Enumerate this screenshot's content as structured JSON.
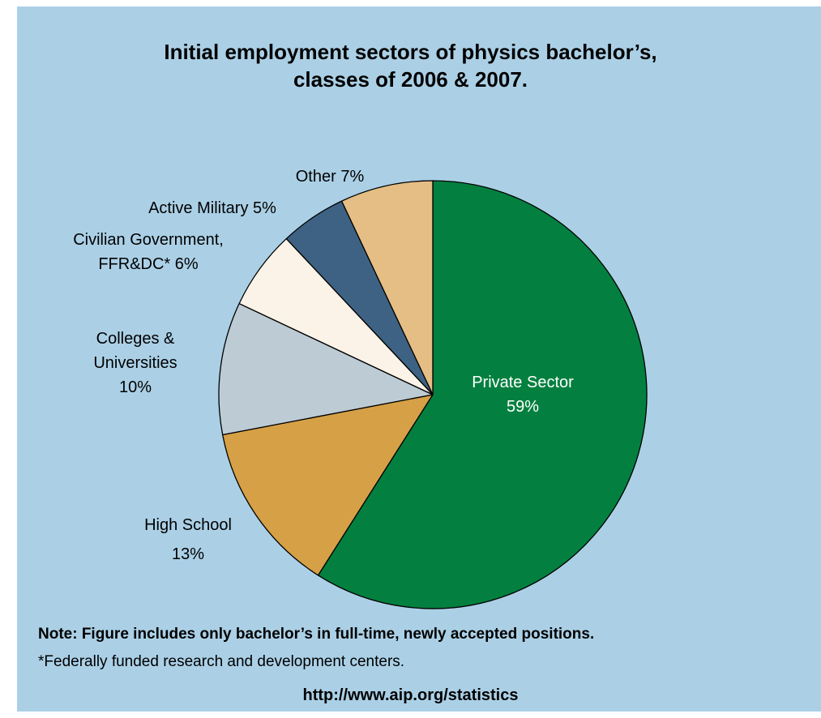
{
  "chart_data": {
    "type": "pie",
    "title": "Initial employment sectors of physics bachelor’s, classes of 2006 & 2007.",
    "title_lines": [
      "Initial employment sectors of physics bachelor’s,",
      "classes of 2006 & 2007."
    ],
    "start_angle_deg": 0,
    "direction": "clockwise",
    "slices": [
      {
        "name": "Private Sector",
        "value": 59,
        "label_lines": [
          "Private Sector",
          "59%"
        ],
        "color": "#03803f",
        "label_color": "#ffffff"
      },
      {
        "name": "High School",
        "value": 13,
        "label_lines": [
          "High School",
          "13%"
        ],
        "color": "#d6a047",
        "label_color": "#000000"
      },
      {
        "name": "Colleges & Universities",
        "value": 10,
        "label_lines": [
          "Colleges &",
          "Universities",
          "10%"
        ],
        "color": "#bdcbd4",
        "label_color": "#000000"
      },
      {
        "name": "Civilian Government, FFR&DC*",
        "value": 6,
        "label_lines": [
          "Civilian Government,",
          "FFR&DC*    6%"
        ],
        "color": "#fbf3e7",
        "label_color": "#000000"
      },
      {
        "name": "Active Military",
        "value": 5,
        "label_lines": [
          "Active Military 5%"
        ],
        "color": "#3e6283",
        "label_color": "#000000"
      },
      {
        "name": "Other",
        "value": 7,
        "label_lines": [
          "Other 7%"
        ],
        "color": "#e4be85",
        "label_color": "#000000"
      }
    ]
  },
  "notes": {
    "note": "Note: Figure includes only bachelor’s in full-time, newly accepted positions.",
    "footnote": "*Federally funded research and development centers."
  },
  "source_url": "http://www.aip.org/statistics",
  "colors": {
    "background": "#abd0e6",
    "slice_border": "#000000"
  }
}
